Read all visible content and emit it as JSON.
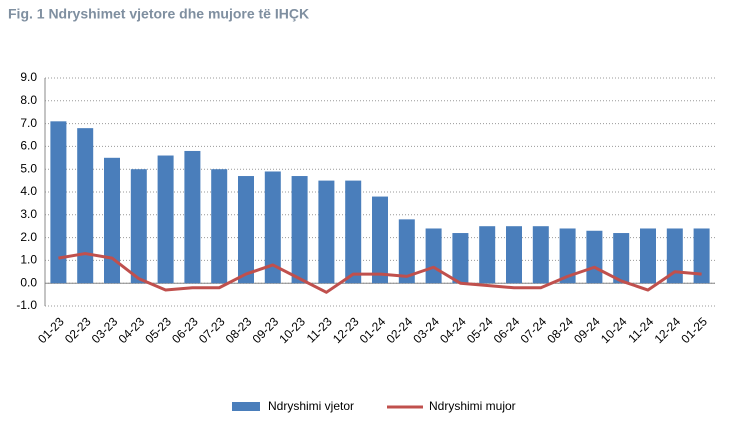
{
  "chart_data": {
    "type": "bar",
    "title": "Fig. 1 Ndryshimet vjetore dhe mujore të IHÇK",
    "categories": [
      "01-23",
      "02-23",
      "03-23",
      "04-23",
      "05-23",
      "06-23",
      "07-23",
      "08-23",
      "09-23",
      "10-23",
      "11-23",
      "12-23",
      "01-24",
      "02-24",
      "03-24",
      "04-24",
      "05-24",
      "06-24",
      "07-24",
      "08-24",
      "09-24",
      "10-24",
      "11-24",
      "12-24",
      "01-25"
    ],
    "series": [
      {
        "name": "Ndryshimi vjetor",
        "type": "bar",
        "color": "#4a7ebb",
        "values": [
          7.1,
          6.8,
          5.5,
          5.0,
          5.6,
          5.8,
          5.0,
          4.7,
          4.9,
          4.7,
          4.5,
          4.5,
          3.8,
          2.8,
          2.4,
          2.2,
          2.5,
          2.5,
          2.5,
          2.4,
          2.3,
          2.2,
          2.4,
          2.4,
          2.4
        ]
      },
      {
        "name": "Ndryshimi mujor",
        "type": "line",
        "color": "#c0504d",
        "values": [
          1.1,
          1.3,
          1.1,
          0.2,
          -0.3,
          -0.2,
          -0.2,
          0.4,
          0.8,
          0.2,
          -0.4,
          0.4,
          0.4,
          0.3,
          0.7,
          0.0,
          -0.1,
          -0.2,
          -0.2,
          0.3,
          0.7,
          0.1,
          -0.3,
          0.5,
          0.4
        ]
      }
    ],
    "ylim": [
      -1,
      9
    ],
    "yticks": [
      {
        "value": -1,
        "label": "-1.0"
      },
      {
        "value": 0,
        "label": "0.0"
      },
      {
        "value": 1,
        "label": "1.0"
      },
      {
        "value": 2,
        "label": "2.0"
      },
      {
        "value": 3,
        "label": "3.0"
      },
      {
        "value": 4,
        "label": "4.0"
      },
      {
        "value": 5,
        "label": "5.0"
      },
      {
        "value": 6,
        "label": "6.0"
      },
      {
        "value": 7,
        "label": "7.0"
      },
      {
        "value": 8,
        "label": "8.0"
      },
      {
        "value": 9,
        "label": "9.0"
      }
    ],
    "grid": true,
    "legend": "bottom"
  }
}
